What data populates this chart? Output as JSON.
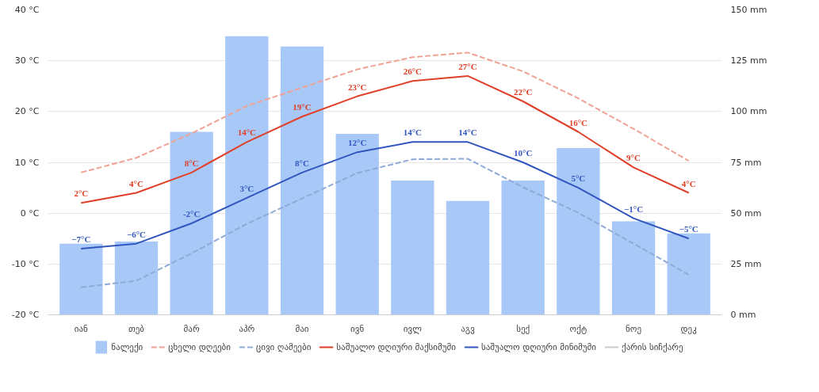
{
  "chart_data": {
    "type": "line",
    "categories": [
      "იან",
      "თებ",
      "მარ",
      "აპრ",
      "მაი",
      "ივნ",
      "ივლ",
      "აგვ",
      "სექ",
      "ოქტ",
      "ნოე",
      "დეკ"
    ],
    "series": [
      {
        "name": "ნალექი",
        "type": "bar",
        "axis": "y2",
        "color": "#a8c8f8",
        "values": [
          35,
          36,
          90,
          137,
          132,
          89,
          66,
          56,
          66,
          82,
          46,
          40
        ]
      },
      {
        "name": "ცხელი დღეები",
        "line_style": "dashed",
        "color": "#f0a294",
        "values": [
          8,
          10.9,
          15.7,
          21.1,
          24.7,
          28.3,
          30.7,
          31.6,
          27.9,
          22.6,
          16.6,
          10.3
        ]
      },
      {
        "name": "ცივი ღამეები",
        "line_style": "dashed",
        "color": "#8eaad8",
        "values": [
          -14.6,
          -13.3,
          -7.9,
          -2.1,
          2.9,
          7.9,
          10.6,
          10.7,
          5.1,
          0.1,
          -6,
          -12.1
        ]
      },
      {
        "name": "საშუალო დღიური მაქსიმუმი",
        "line_style": "solid",
        "color": "#e0402a",
        "values": [
          2,
          4,
          8,
          14,
          19,
          23,
          26,
          27,
          22,
          16,
          9,
          4
        ],
        "value_labels": [
          "2°C",
          "4°C",
          "8°C",
          "14°C",
          "19°C",
          "23°C",
          "26°C",
          "27°C",
          "22°C",
          "16°C",
          "9°C",
          "4°C"
        ]
      },
      {
        "name": "საშუალო დღიური მინიმუმი",
        "line_style": "solid",
        "color": "#3256c0",
        "values": [
          -7,
          -6,
          -2,
          3,
          8,
          12,
          14,
          14,
          10,
          5,
          -1,
          -5
        ],
        "value_labels": [
          "−7°C",
          "−6°C",
          "-2°C",
          "3°C",
          "8°C",
          "12°C",
          "14°C",
          "14°C",
          "10°C",
          "5°C",
          "−1°C",
          "−5°C"
        ]
      },
      {
        "name": "ქარის სიჩქარე",
        "line_style": "solid",
        "color": "#cccccc",
        "values": [
          null,
          null,
          null,
          null,
          null,
          null,
          null,
          null,
          null,
          null,
          null,
          null
        ]
      }
    ],
    "ylim": [
      -20,
      40
    ],
    "yticks": [
      {
        "value": -20,
        "label": "-20 °C"
      },
      {
        "value": -10,
        "label": "-10 °C"
      },
      {
        "value": 0,
        "label": "0 °C"
      },
      {
        "value": 10,
        "label": "10 °C"
      },
      {
        "value": 20,
        "label": "20 °C"
      },
      {
        "value": 30,
        "label": "30 °C"
      },
      {
        "value": 40,
        "label": "40 °C"
      }
    ],
    "y2lim": [
      0,
      150
    ],
    "y2ticks": [
      {
        "value": 0,
        "label": "0 mm"
      },
      {
        "value": 25,
        "label": "25 mm"
      },
      {
        "value": 50,
        "label": "50 mm"
      },
      {
        "value": 75,
        "label": "75 mm"
      },
      {
        "value": 100,
        "label": "100 mm"
      },
      {
        "value": 125,
        "label": "125 mm"
      },
      {
        "value": 150,
        "label": "150 mm"
      }
    ],
    "grid": "y",
    "legend": "bottom",
    "marker": "none"
  }
}
